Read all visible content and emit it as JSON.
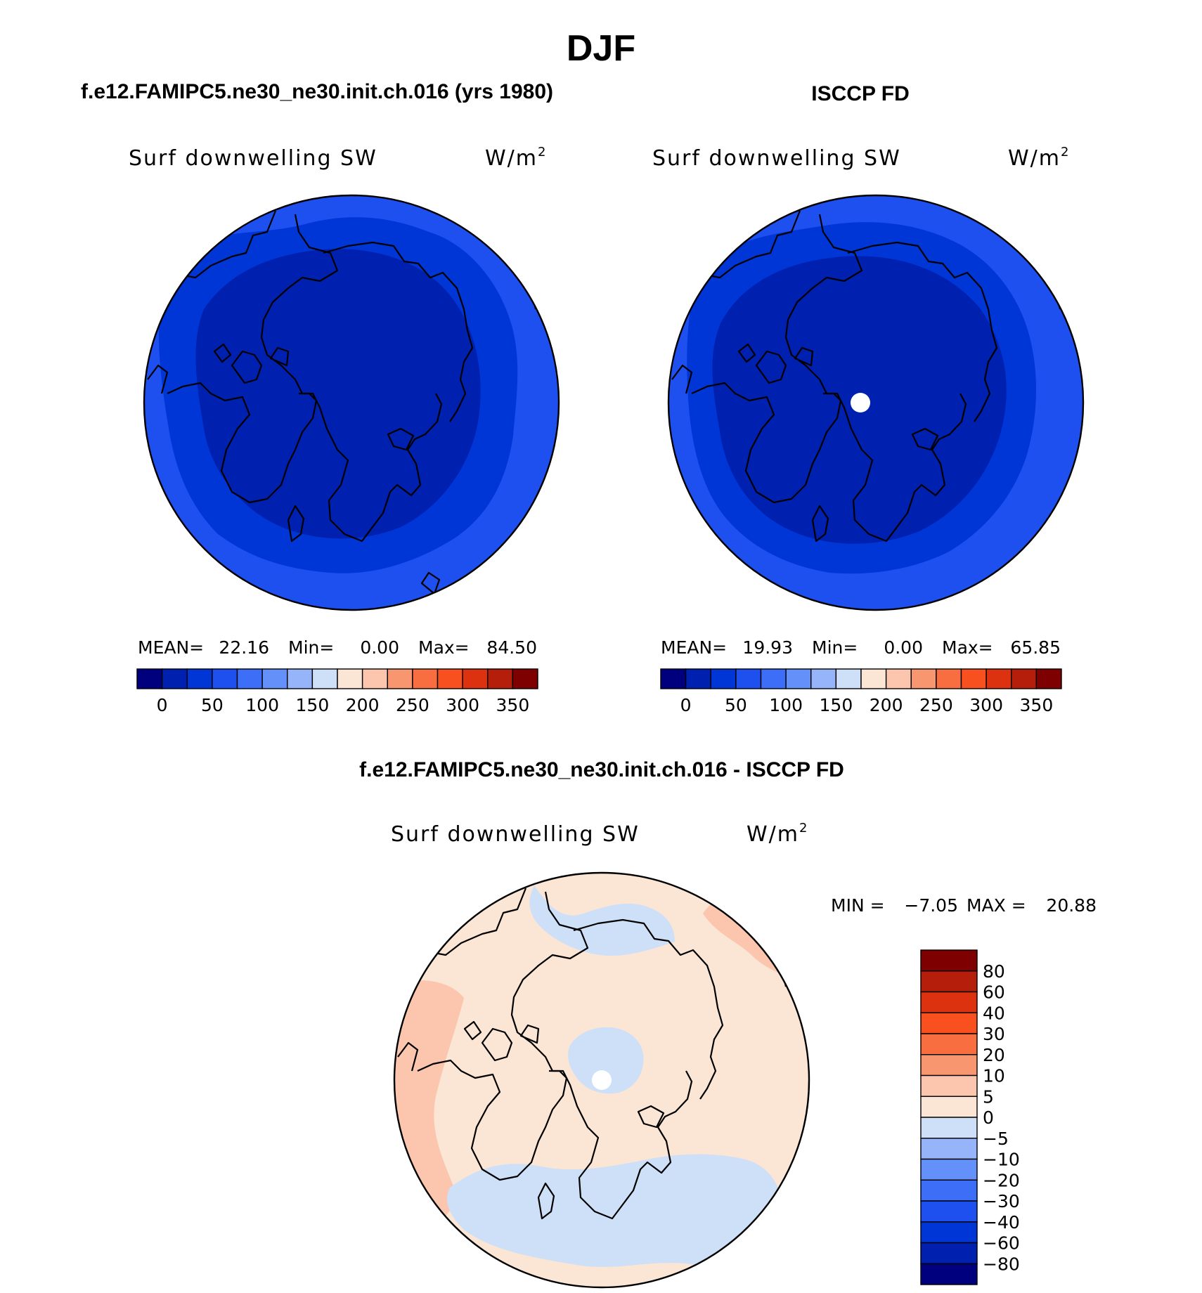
{
  "page_title": "DJF",
  "colors": {
    "abs_scale": [
      "#00007f",
      "#0020b0",
      "#0036d6",
      "#1e50f0",
      "#3c6ef8",
      "#6490fa",
      "#96b4fa",
      "#cde0f8",
      "#fbe5d4",
      "#fbc6ad",
      "#f89670",
      "#f86e40",
      "#f8501e",
      "#dc3210",
      "#b41e0a",
      "#7f0000"
    ],
    "diff_scale": [
      "#00007f",
      "#0020b0",
      "#0036d6",
      "#1e50f0",
      "#3c6ef8",
      "#6490fa",
      "#96b4fa",
      "#cde0f8",
      "#fbe5d4",
      "#fbc6ad",
      "#f89670",
      "#f86e40",
      "#f8501e",
      "#dc3210",
      "#b41e0a",
      "#7f0000"
    ]
  },
  "chart_data": [
    {
      "type": "heatmap",
      "projection": "north-polar-stereographic",
      "title": "f.e12.FAMIPC5.ne30_ne30.init.ch.016 (yrs 1980)",
      "subtitle_left": "Surf downwelling SW",
      "subtitle_right": "W/m",
      "subtitle_right_sup": "2",
      "stats": [
        {
          "label": "MEAN=",
          "value": "22.16"
        },
        {
          "label": "Min=",
          "value": "0.00"
        },
        {
          "label": "Max=",
          "value": "84.50"
        }
      ],
      "colorbar_orientation": "horizontal",
      "colorbar_ticks": [
        "0",
        "50",
        "100",
        "150",
        "200",
        "250",
        "300",
        "350"
      ],
      "field_ring_values_from_pole": [
        5,
        15,
        40,
        70
      ]
    },
    {
      "type": "heatmap",
      "projection": "north-polar-stereographic",
      "title": "ISCCP FD",
      "subtitle_left": "Surf downwelling SW",
      "subtitle_right": "W/m",
      "subtitle_right_sup": "2",
      "stats": [
        {
          "label": "MEAN=",
          "value": "19.93"
        },
        {
          "label": "Min=",
          "value": "0.00"
        },
        {
          "label": "Max=",
          "value": "65.85"
        }
      ],
      "colorbar_orientation": "horizontal",
      "colorbar_ticks": [
        "0",
        "50",
        "100",
        "150",
        "200",
        "250",
        "300",
        "350"
      ],
      "field_ring_values_from_pole": [
        5,
        15,
        40,
        60
      ],
      "missing_value_at_pole": true
    },
    {
      "type": "heatmap",
      "projection": "north-polar-stereographic",
      "title": "f.e12.FAMIPC5.ne30_ne30.init.ch.016 - ISCCP FD",
      "subtitle_left": "Surf downwelling SW",
      "subtitle_right": "W/m",
      "subtitle_right_sup": "2",
      "min_label": "MIN =",
      "min_value": "−7.05",
      "max_label": "MAX =",
      "max_value": "20.88",
      "colorbar_orientation": "vertical",
      "colorbar_ticks": [
        "80",
        "60",
        "40",
        "30",
        "20",
        "10",
        "5",
        "0",
        "−5",
        "−10",
        "−20",
        "−30",
        "−40",
        "−60",
        "−80"
      ],
      "field_ring_values_from_pole": [
        -3,
        3,
        3,
        8
      ],
      "missing_value_at_pole": true
    }
  ]
}
